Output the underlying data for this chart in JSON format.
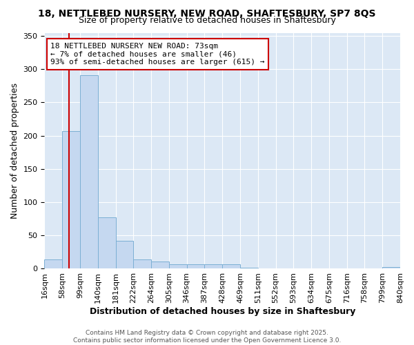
{
  "title1": "18, NETTLEBED NURSERY, NEW ROAD, SHAFTESBURY, SP7 8QS",
  "title2": "Size of property relative to detached houses in Shaftesbury",
  "xlabel": "Distribution of detached houses by size in Shaftesbury",
  "ylabel": "Number of detached properties",
  "bin_labels": [
    "16sqm",
    "58sqm",
    "99sqm",
    "140sqm",
    "181sqm",
    "222sqm",
    "264sqm",
    "305sqm",
    "346sqm",
    "387sqm",
    "428sqm",
    "469sqm",
    "511sqm",
    "552sqm",
    "593sqm",
    "634sqm",
    "675sqm",
    "716sqm",
    "758sqm",
    "799sqm",
    "840sqm"
  ],
  "bar_heights": [
    13,
    207,
    291,
    77,
    42,
    13,
    10,
    6,
    6,
    6,
    6,
    1,
    0,
    0,
    0,
    0,
    0,
    0,
    0,
    2
  ],
  "bar_color": "#c5d8f0",
  "bar_edge_color": "#7bafd4",
  "vline_color": "#cc0000",
  "ylim": [
    0,
    355
  ],
  "yticks": [
    0,
    50,
    100,
    150,
    200,
    250,
    300,
    350
  ],
  "annotation_text": "18 NETTLEBED NURSERY NEW ROAD: 73sqm\n← 7% of detached houses are smaller (46)\n93% of semi-detached houses are larger (615) →",
  "annotation_box_color": "#ffffff",
  "annotation_border_color": "#cc0000",
  "footer_text": "Contains HM Land Registry data © Crown copyright and database right 2025.\nContains public sector information licensed under the Open Government Licence 3.0.",
  "fig_background": "#ffffff",
  "plot_background": "#dce8f5",
  "grid_color": "#ffffff",
  "title_fontsize": 10,
  "subtitle_fontsize": 9,
  "axis_label_fontsize": 9,
  "tick_fontsize": 8,
  "annotation_fontsize": 8,
  "footer_fontsize": 6.5
}
